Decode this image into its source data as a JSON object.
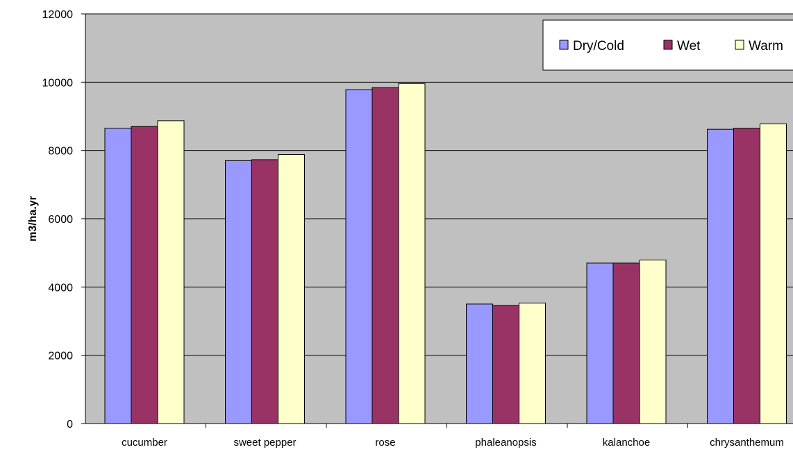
{
  "chart_data": {
    "type": "bar",
    "title": "",
    "xlabel": "",
    "ylabel": "m3/ha.yr",
    "ylim": [
      0,
      12000
    ],
    "yticks": [
      0,
      2000,
      4000,
      6000,
      8000,
      10000,
      12000
    ],
    "grid": true,
    "legend_position": "top-right",
    "categories": [
      "cucumber",
      "sweet pepper",
      "rose",
      "phaleanopsis",
      "kalanchoe",
      "chrysanthemum"
    ],
    "series": [
      {
        "name": "Dry/Cold",
        "color": "#9999ff",
        "values": [
          8650,
          7700,
          9780,
          3500,
          4700,
          8620
        ]
      },
      {
        "name": "Wet",
        "color": "#993366",
        "values": [
          8700,
          7730,
          9840,
          3460,
          4700,
          8650
        ]
      },
      {
        "name": "Warm",
        "color": "#ffffcc",
        "values": [
          8870,
          7880,
          9960,
          3530,
          4790,
          8780
        ]
      }
    ],
    "plot_background": "#c0c0c0"
  }
}
